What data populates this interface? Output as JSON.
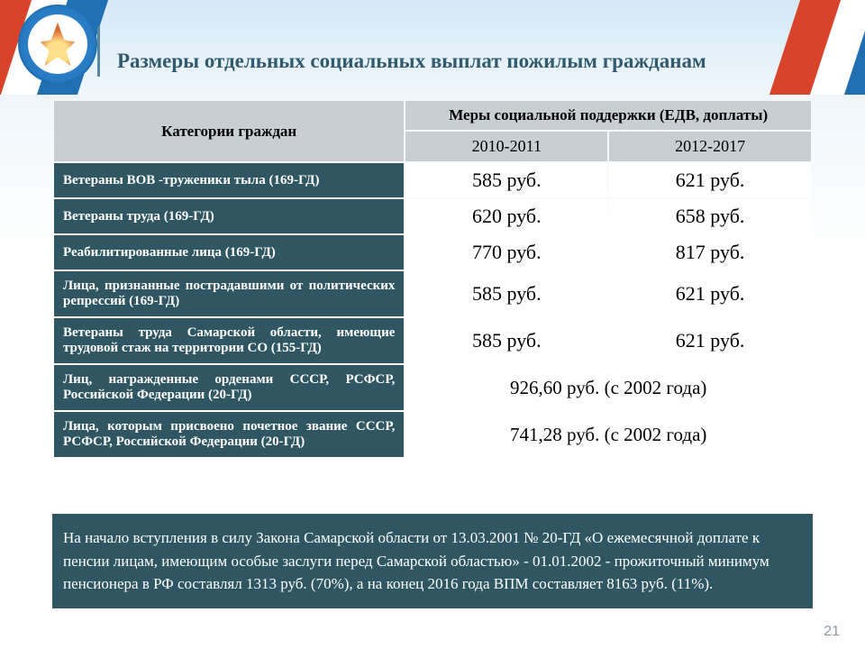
{
  "title": "Размеры отдельных социальных выплат пожилым гражданам",
  "header": {
    "categories": "Категории граждан",
    "measures": "Меры социальной поддержки (ЕДВ, доплаты)",
    "period1": "2010-2011",
    "period2": "2012-2017"
  },
  "rows": [
    {
      "cat": "Ветераны ВОВ -труженики тыла (169-ГД)",
      "v1": "585 руб.",
      "v2": "621 руб.",
      "justify": false
    },
    {
      "cat": "Ветераны труда (169-ГД)",
      "v1": "620  руб.",
      "v2": "658 руб.",
      "justify": false
    },
    {
      "cat": "Реабилитированные лица (169-ГД)",
      "v1": "770 руб.",
      "v2": "817 руб.",
      "justify": false
    },
    {
      "cat": "Лица, признанные пострадавшими от политических репрессий (169-ГД)",
      "v1": "585 руб.",
      "v2": "621 руб.",
      "justify": true
    },
    {
      "cat": "Ветераны труда Самарской области, имеющие трудовой стаж на территории СО (155-ГД)",
      "v1": "585 руб.",
      "v2": "621 руб.",
      "justify": true
    },
    {
      "cat": "Лиц, награжденные орденами СССР, РСФСР, Российской Федерации (20-ГД)",
      "span": "926,60 руб. (с 2002 года)",
      "justify": true
    },
    {
      "cat": "Лица, которым присвоено почетное звание СССР, РСФСР, Российской Федерации (20-ГД)",
      "span": "741,28 руб. (с 2002 года)",
      "justify": true
    }
  ],
  "note": "На начало вступления в силу Закона Самарской области от 13.03.2001 № 20-ГД «О ежемесячной  доплате к пенсии лицам, имеющим особые заслуги перед Самарской областью» - 01.01.2002 - прожиточный минимум пенсионера в РФ составлял 1313 руб. (70%), а на  конец 2016 года ВПМ составляет 8163 руб. (11%).",
  "page": "21",
  "colors": {
    "header_bg": "#c7cfd3",
    "row_dark": "#2f5662",
    "title_color": "#315a6e"
  }
}
